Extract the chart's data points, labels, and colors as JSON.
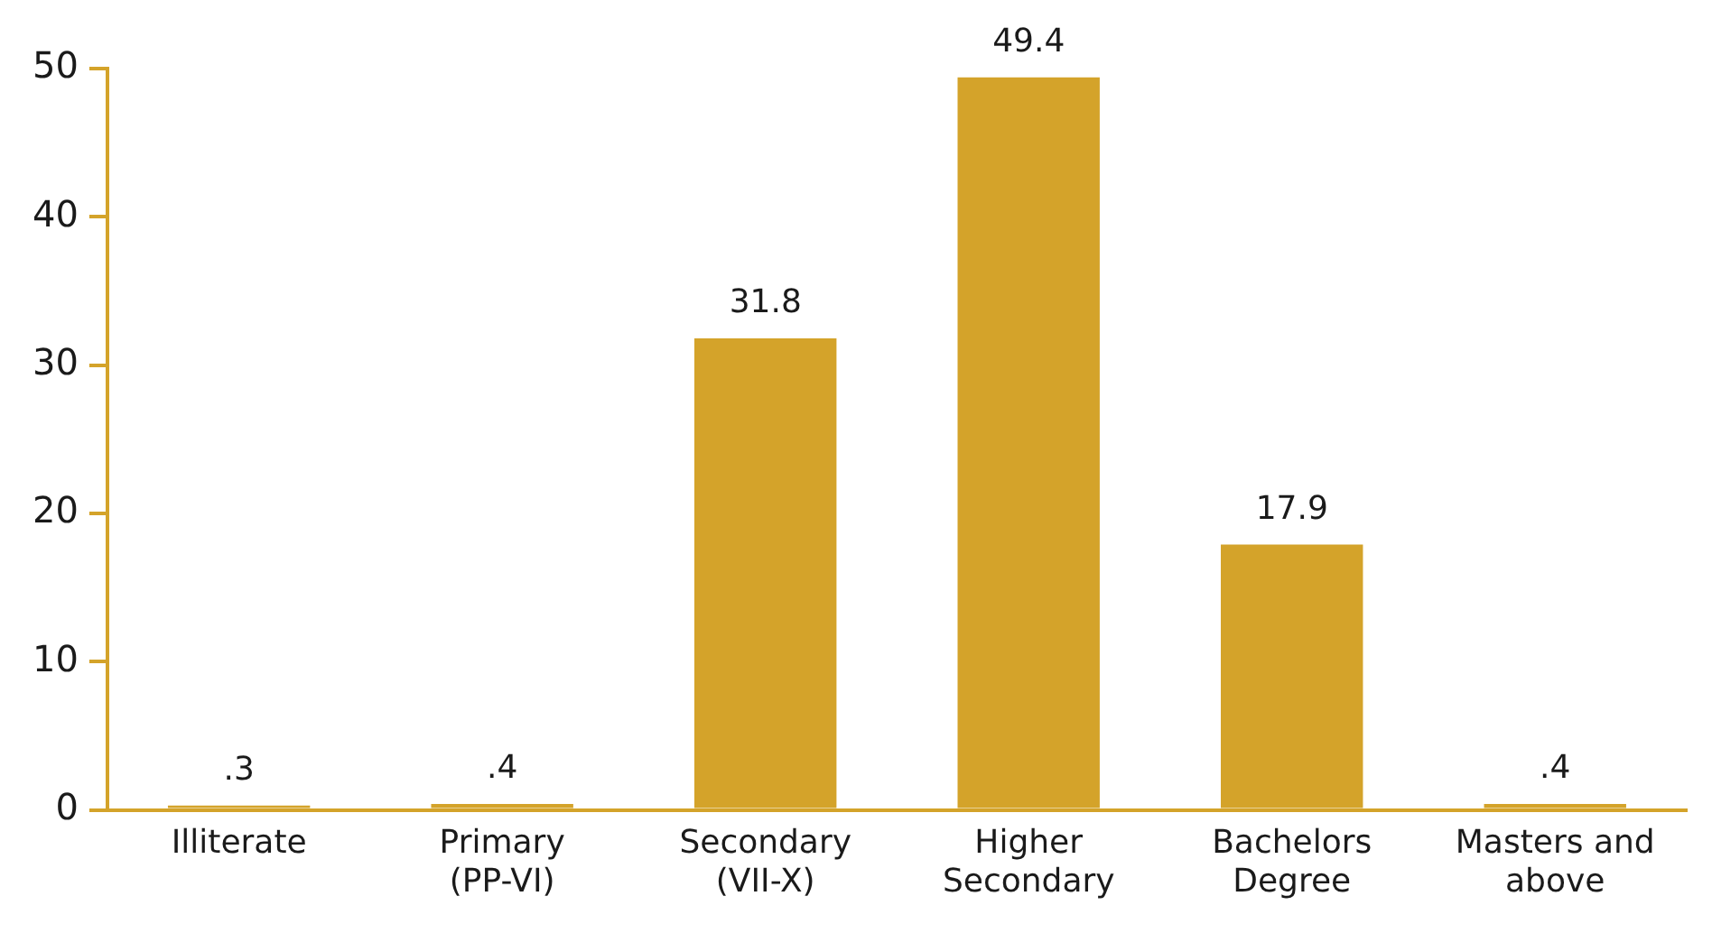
{
  "chart_data": {
    "type": "bar",
    "categories": [
      "Illiterate",
      "Primary (PP-VI)",
      "Secondary (VII-X)",
      "Higher Secondary",
      "Bachelors Degree",
      "Masters and above"
    ],
    "values": [
      0.3,
      0.4,
      31.8,
      49.4,
      17.9,
      0.4
    ],
    "value_labels": [
      ".3",
      ".4",
      "31.8",
      "49.4",
      "17.9",
      ".4"
    ],
    "color": "#d4a32a",
    "ylim": [
      0,
      50
    ],
    "yticks": [
      0,
      10,
      20,
      30,
      40,
      50
    ],
    "grid": false,
    "legend": false
  }
}
